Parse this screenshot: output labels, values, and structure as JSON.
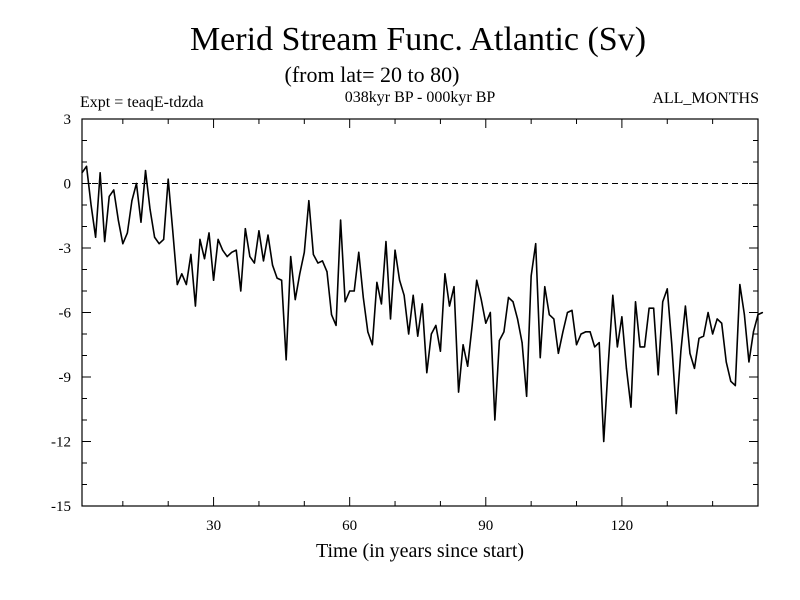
{
  "chart_data": {
    "type": "line",
    "title": "Merid Stream Func. Atlantic (Sv)",
    "subtitle": "(from lat= 20 to 80)",
    "experiment": "Expt = teaqE-tdzda",
    "period": "038kyr BP - 000kyr BP",
    "months": "ALL_MONTHS",
    "xlabel": "Time (in years since start)",
    "ylabel": "",
    "xlim": [
      1,
      150
    ],
    "ylim": [
      -15,
      3
    ],
    "xticks": [
      30,
      60,
      90,
      120
    ],
    "yticks": [
      3,
      0,
      -3,
      -6,
      -9,
      -12,
      -15
    ],
    "reference_line": 0,
    "x_start": 1,
    "series": [
      {
        "name": "Merid Stream Func. Atlantic",
        "values": [
          0.5,
          0.8,
          -1.0,
          -2.5,
          0.5,
          -2.7,
          -0.6,
          -0.3,
          -1.7,
          -2.8,
          -2.3,
          -0.8,
          0.0,
          -1.8,
          0.6,
          -1.2,
          -2.5,
          -2.8,
          -2.6,
          0.2,
          -2.2,
          -4.7,
          -4.2,
          -4.7,
          -3.3,
          -5.7,
          -2.6,
          -3.5,
          -2.3,
          -4.5,
          -2.6,
          -3.1,
          -3.4,
          -3.2,
          -3.1,
          -5.0,
          -2.1,
          -3.4,
          -3.7,
          -2.2,
          -3.6,
          -2.4,
          -3.8,
          -4.4,
          -4.5,
          -8.2,
          -3.4,
          -5.4,
          -4.2,
          -3.2,
          -0.8,
          -3.3,
          -3.7,
          -3.6,
          -4.1,
          -6.1,
          -6.6,
          -1.7,
          -5.5,
          -5.0,
          -5.0,
          -3.2,
          -5.3,
          -6.9,
          -7.5,
          -4.6,
          -5.6,
          -2.7,
          -6.3,
          -3.1,
          -4.5,
          -5.2,
          -7.0,
          -5.2,
          -7.1,
          -5.6,
          -8.8,
          -7.0,
          -6.6,
          -7.8,
          -4.2,
          -5.7,
          -4.8,
          -9.7,
          -7.5,
          -8.5,
          -6.6,
          -4.5,
          -5.4,
          -6.5,
          -6.0,
          -11.0,
          -7.3,
          -6.9,
          -5.3,
          -5.5,
          -6.3,
          -7.4,
          -9.9,
          -4.3,
          -2.8,
          -8.1,
          -4.8,
          -6.1,
          -6.3,
          -7.9,
          -6.9,
          -6.0,
          -5.9,
          -7.5,
          -7.0,
          -6.9,
          -6.9,
          -7.6,
          -7.4,
          -12.0,
          -8.4,
          -5.2,
          -7.6,
          -6.2,
          -8.6,
          -10.4,
          -5.5,
          -7.6,
          -7.6,
          -5.8,
          -5.8,
          -8.9,
          -5.5,
          -4.9,
          -7.5,
          -10.7,
          -7.8,
          -5.7,
          -7.9,
          -8.6,
          -7.2,
          -7.1,
          -6.0,
          -7.0,
          -6.3,
          -6.5,
          -8.3,
          -9.2,
          -9.4,
          -4.7,
          -6.1,
          -8.3,
          -6.9,
          -6.1,
          -6.0
        ]
      }
    ]
  }
}
